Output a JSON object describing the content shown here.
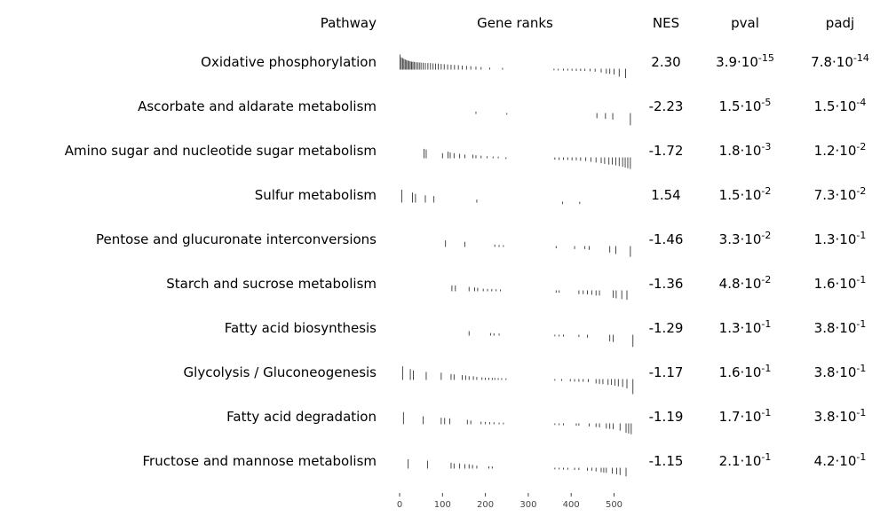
{
  "chart_data": {
    "type": "table",
    "headers": {
      "pathway": "Pathway",
      "ranks": "Gene ranks",
      "nes": "NES",
      "pval": "pval",
      "padj": "padj"
    },
    "rank_axis": {
      "ticks": [
        0,
        100,
        200,
        300,
        400,
        500
      ],
      "range": [
        0,
        550
      ]
    },
    "rows": [
      {
        "pathway": "Oxidative phosphorylation",
        "nes": "2.30",
        "pval": {
          "mantissa": "3.9",
          "exponent": "-15"
        },
        "padj": {
          "mantissa": "7.8",
          "exponent": "-14"
        },
        "ranks": [
          [
            1,
            1.0
          ],
          [
            4,
            0.8
          ],
          [
            7,
            0.75
          ],
          [
            10,
            0.7
          ],
          [
            13,
            0.65
          ],
          [
            16,
            0.6
          ],
          [
            19,
            0.58
          ],
          [
            22,
            0.55
          ],
          [
            25,
            0.52
          ],
          [
            28,
            0.5
          ],
          [
            31,
            0.5
          ],
          [
            34,
            0.48
          ],
          [
            38,
            0.46
          ],
          [
            42,
            0.45
          ],
          [
            46,
            0.44
          ],
          [
            50,
            0.43
          ],
          [
            55,
            0.42
          ],
          [
            60,
            0.41
          ],
          [
            66,
            0.4
          ],
          [
            72,
            0.4
          ],
          [
            78,
            0.38
          ],
          [
            84,
            0.37
          ],
          [
            90,
            0.36
          ],
          [
            97,
            0.34
          ],
          [
            104,
            0.32
          ],
          [
            112,
            0.3
          ],
          [
            120,
            0.28
          ],
          [
            128,
            0.27
          ],
          [
            137,
            0.25
          ],
          [
            146,
            0.22
          ],
          [
            156,
            0.2
          ],
          [
            166,
            0.18
          ],
          [
            178,
            0.15
          ],
          [
            190,
            0.12
          ],
          [
            210,
            0.08
          ],
          [
            240,
            0.06
          ],
          [
            360,
            -0.05
          ],
          [
            370,
            -0.06
          ],
          [
            382,
            -0.07
          ],
          [
            392,
            -0.07
          ],
          [
            402,
            -0.08
          ],
          [
            412,
            -0.09
          ],
          [
            422,
            -0.1
          ],
          [
            432,
            -0.1
          ],
          [
            444,
            -0.12
          ],
          [
            456,
            -0.15
          ],
          [
            470,
            -0.2
          ],
          [
            482,
            -0.28
          ],
          [
            490,
            -0.3
          ],
          [
            500,
            -0.35
          ],
          [
            512,
            -0.5
          ],
          [
            527,
            -0.6
          ]
        ]
      },
      {
        "pathway": "Ascorbate and aldarate metabolism",
        "nes": "-2.23",
        "pval": {
          "mantissa": "1.5",
          "exponent": "-5"
        },
        "padj": {
          "mantissa": "1.5",
          "exponent": "-4"
        },
        "ranks": [
          [
            178,
            0.1
          ],
          [
            250,
            -0.05
          ],
          [
            460,
            -0.3
          ],
          [
            480,
            -0.35
          ],
          [
            497,
            -0.4
          ],
          [
            538,
            -0.8
          ]
        ]
      },
      {
        "pathway": "Amino sugar and nucleotide sugar metabolism",
        "nes": "-1.72",
        "pval": {
          "mantissa": "1.8",
          "exponent": "-3"
        },
        "padj": {
          "mantissa": "1.2",
          "exponent": "-2"
        },
        "ranks": [
          [
            57,
            0.6
          ],
          [
            62,
            0.55
          ],
          [
            100,
            0.3
          ],
          [
            113,
            0.4
          ],
          [
            118,
            0.35
          ],
          [
            127,
            0.3
          ],
          [
            140,
            0.25
          ],
          [
            152,
            0.2
          ],
          [
            171,
            0.2
          ],
          [
            178,
            0.15
          ],
          [
            190,
            0.12
          ],
          [
            204,
            0.08
          ],
          [
            218,
            0.06
          ],
          [
            230,
            0.05
          ],
          [
            248,
            -0.05
          ],
          [
            362,
            -0.1
          ],
          [
            372,
            -0.12
          ],
          [
            382,
            -0.12
          ],
          [
            392,
            -0.12
          ],
          [
            402,
            -0.15
          ],
          [
            412,
            -0.15
          ],
          [
            422,
            -0.18
          ],
          [
            434,
            -0.2
          ],
          [
            446,
            -0.25
          ],
          [
            458,
            -0.3
          ],
          [
            470,
            -0.35
          ],
          [
            478,
            -0.4
          ],
          [
            488,
            -0.45
          ],
          [
            496,
            -0.45
          ],
          [
            504,
            -0.5
          ],
          [
            512,
            -0.55
          ],
          [
            520,
            -0.6
          ],
          [
            526,
            -0.65
          ],
          [
            532,
            -0.7
          ],
          [
            538,
            -0.75
          ]
        ]
      },
      {
        "pathway": "Sulfur metabolism",
        "nes": "1.54",
        "pval": {
          "mantissa": "1.5",
          "exponent": "-2"
        },
        "padj": {
          "mantissa": "7.3",
          "exponent": "-2"
        },
        "ranks": [
          [
            5,
            0.85
          ],
          [
            30,
            0.65
          ],
          [
            37,
            0.55
          ],
          [
            60,
            0.45
          ],
          [
            80,
            0.4
          ],
          [
            180,
            0.15
          ],
          [
            380,
            -0.1
          ],
          [
            420,
            -0.1
          ]
        ]
      },
      {
        "pathway": "Pentose and glucuronate interconversions",
        "nes": "-1.46",
        "pval": {
          "mantissa": "3.3",
          "exponent": "-2"
        },
        "padj": {
          "mantissa": "1.3",
          "exponent": "-1"
        },
        "ranks": [
          [
            107,
            0.4
          ],
          [
            152,
            0.3
          ],
          [
            222,
            0.1
          ],
          [
            232,
            0.08
          ],
          [
            242,
            0.06
          ],
          [
            365,
            -0.1
          ],
          [
            408,
            -0.15
          ],
          [
            432,
            -0.15
          ],
          [
            442,
            -0.2
          ],
          [
            490,
            -0.4
          ],
          [
            504,
            -0.5
          ],
          [
            538,
            -0.7
          ]
        ]
      },
      {
        "pathway": "Starch and sucrose metabolism",
        "nes": "-1.36",
        "pval": {
          "mantissa": "4.8",
          "exponent": "-2"
        },
        "padj": {
          "mantissa": "1.6",
          "exponent": "-1"
        },
        "ranks": [
          [
            122,
            0.35
          ],
          [
            130,
            0.35
          ],
          [
            162,
            0.25
          ],
          [
            175,
            0.2
          ],
          [
            182,
            0.18
          ],
          [
            195,
            0.12
          ],
          [
            205,
            0.1
          ],
          [
            215,
            0.1
          ],
          [
            225,
            0.08
          ],
          [
            235,
            0.06
          ],
          [
            365,
            -0.1
          ],
          [
            372,
            -0.1
          ],
          [
            418,
            -0.2
          ],
          [
            428,
            -0.2
          ],
          [
            438,
            -0.22
          ],
          [
            448,
            -0.25
          ],
          [
            458,
            -0.3
          ],
          [
            466,
            -0.3
          ],
          [
            498,
            -0.45
          ],
          [
            505,
            -0.5
          ],
          [
            518,
            -0.55
          ],
          [
            530,
            -0.6
          ]
        ]
      },
      {
        "pathway": "Fatty acid biosynthesis",
        "nes": "-1.29",
        "pval": {
          "mantissa": "1.3",
          "exponent": "-1"
        },
        "padj": {
          "mantissa": "3.8",
          "exponent": "-1"
        },
        "ranks": [
          [
            162,
            0.25
          ],
          [
            212,
            0.12
          ],
          [
            220,
            0.1
          ],
          [
            232,
            0.08
          ],
          [
            362,
            -0.05
          ],
          [
            372,
            -0.06
          ],
          [
            382,
            -0.07
          ],
          [
            418,
            -0.1
          ],
          [
            438,
            -0.15
          ],
          [
            490,
            -0.4
          ],
          [
            498,
            -0.45
          ],
          [
            544,
            -0.8
          ]
        ]
      },
      {
        "pathway": "Glycolysis / Gluconeogenesis",
        "nes": "-1.17",
        "pval": {
          "mantissa": "1.6",
          "exponent": "-1"
        },
        "padj": {
          "mantissa": "3.8",
          "exponent": "-1"
        },
        "ranks": [
          [
            7,
            0.9
          ],
          [
            25,
            0.7
          ],
          [
            32,
            0.6
          ],
          [
            62,
            0.5
          ],
          [
            97,
            0.45
          ],
          [
            120,
            0.35
          ],
          [
            127,
            0.33
          ],
          [
            146,
            0.28
          ],
          [
            154,
            0.25
          ],
          [
            162,
            0.2
          ],
          [
            172,
            0.2
          ],
          [
            180,
            0.15
          ],
          [
            192,
            0.12
          ],
          [
            200,
            0.1
          ],
          [
            208,
            0.09
          ],
          [
            216,
            0.09
          ],
          [
            222,
            0.08
          ],
          [
            230,
            0.07
          ],
          [
            238,
            0.06
          ],
          [
            248,
            0.05
          ],
          [
            362,
            -0.05
          ],
          [
            378,
            -0.07
          ],
          [
            398,
            -0.1
          ],
          [
            408,
            -0.12
          ],
          [
            418,
            -0.13
          ],
          [
            428,
            -0.13
          ],
          [
            440,
            -0.15
          ],
          [
            458,
            -0.25
          ],
          [
            466,
            -0.28
          ],
          [
            474,
            -0.3
          ],
          [
            486,
            -0.35
          ],
          [
            494,
            -0.35
          ],
          [
            502,
            -0.4
          ],
          [
            510,
            -0.45
          ],
          [
            520,
            -0.5
          ],
          [
            530,
            -0.6
          ],
          [
            544,
            -1.0
          ]
        ]
      },
      {
        "pathway": "Fatty acid degradation",
        "nes": "-1.19",
        "pval": {
          "mantissa": "1.7",
          "exponent": "-1"
        },
        "padj": {
          "mantissa": "3.8",
          "exponent": "-1"
        },
        "ranks": [
          [
            9,
            0.8
          ],
          [
            55,
            0.5
          ],
          [
            97,
            0.4
          ],
          [
            105,
            0.38
          ],
          [
            117,
            0.35
          ],
          [
            158,
            0.25
          ],
          [
            166,
            0.2
          ],
          [
            190,
            0.12
          ],
          [
            200,
            0.1
          ],
          [
            210,
            0.09
          ],
          [
            220,
            0.08
          ],
          [
            232,
            0.06
          ],
          [
            242,
            0.05
          ],
          [
            362,
            -0.05
          ],
          [
            372,
            -0.06
          ],
          [
            382,
            -0.07
          ],
          [
            412,
            -0.1
          ],
          [
            418,
            -0.1
          ],
          [
            442,
            -0.15
          ],
          [
            458,
            -0.2
          ],
          [
            466,
            -0.22
          ],
          [
            482,
            -0.3
          ],
          [
            490,
            -0.33
          ],
          [
            498,
            -0.35
          ],
          [
            514,
            -0.45
          ],
          [
            528,
            -0.6
          ],
          [
            534,
            -0.65
          ],
          [
            540,
            -0.7
          ]
        ]
      },
      {
        "pathway": "Fructose and mannose metabolism",
        "nes": "-1.15",
        "pval": {
          "mantissa": "2.1",
          "exponent": "-1"
        },
        "padj": {
          "mantissa": "4.2",
          "exponent": "-1"
        },
        "ranks": [
          [
            20,
            0.6
          ],
          [
            65,
            0.5
          ],
          [
            120,
            0.35
          ],
          [
            127,
            0.3
          ],
          [
            140,
            0.3
          ],
          [
            152,
            0.25
          ],
          [
            162,
            0.25
          ],
          [
            170,
            0.2
          ],
          [
            180,
            0.15
          ],
          [
            208,
            0.1
          ],
          [
            216,
            0.09
          ],
          [
            362,
            -0.05
          ],
          [
            372,
            -0.06
          ],
          [
            382,
            -0.07
          ],
          [
            392,
            -0.08
          ],
          [
            408,
            -0.1
          ],
          [
            418,
            -0.1
          ],
          [
            438,
            -0.15
          ],
          [
            448,
            -0.15
          ],
          [
            458,
            -0.2
          ],
          [
            470,
            -0.25
          ],
          [
            476,
            -0.28
          ],
          [
            482,
            -0.3
          ],
          [
            496,
            -0.35
          ],
          [
            506,
            -0.4
          ],
          [
            514,
            -0.45
          ],
          [
            528,
            -0.55
          ]
        ]
      }
    ]
  }
}
